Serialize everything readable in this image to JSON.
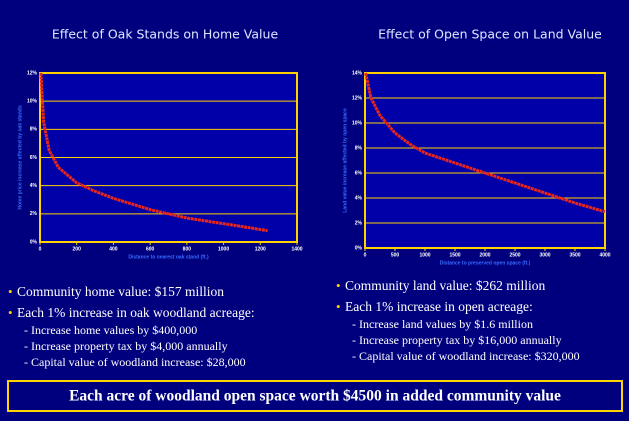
{
  "chart_data": [
    {
      "type": "line",
      "title": "Effect of Oak Stands on Home Value",
      "xlabel": "Distance to nearest oak stand (ft.)",
      "ylabel": "Home price increase affected by oak stands",
      "x": [
        5,
        20,
        50,
        100,
        200,
        300,
        400,
        500,
        600,
        700,
        800,
        900,
        1000,
        1100,
        1240
      ],
      "values": [
        12,
        8.5,
        6.5,
        5.3,
        4.2,
        3.6,
        3.1,
        2.7,
        2.3,
        2.0,
        1.7,
        1.5,
        1.3,
        1.1,
        0.8
      ],
      "color": "#e8261a",
      "xlim": [
        0,
        1400
      ],
      "xticks": [
        0,
        200,
        400,
        600,
        800,
        1000,
        1200,
        1400
      ],
      "ylim": [
        0,
        12
      ],
      "yticks": [
        {
          "value": 0,
          "label": "0%"
        },
        {
          "value": 2,
          "label": "2%"
        },
        {
          "value": 4,
          "label": "4%"
        },
        {
          "value": 6,
          "label": "6%"
        },
        {
          "value": 8,
          "label": "8%"
        },
        {
          "value": 10,
          "label": "10%"
        },
        {
          "value": 12,
          "label": "12%"
        }
      ],
      "grid": true
    },
    {
      "type": "line",
      "title": "Effect of Open Space on Land Value",
      "xlabel": "Distance to preserved open space (ft.)",
      "ylabel": "Land value increase affected by open space",
      "x": [
        10,
        100,
        250,
        500,
        750,
        1000,
        1500,
        2000,
        2500,
        3000,
        3500,
        4000
      ],
      "values": [
        14,
        12,
        10.6,
        9.2,
        8.3,
        7.6,
        6.8,
        6.0,
        5.2,
        4.4,
        3.6,
        2.9
      ],
      "color": "#e8261a",
      "xlim": [
        0,
        4000
      ],
      "xticks": [
        0,
        500,
        1000,
        1500,
        2000,
        2500,
        3000,
        3500,
        4000
      ],
      "ylim": [
        0,
        14
      ],
      "yticks": [
        {
          "value": 0,
          "label": "0%"
        },
        {
          "value": 2,
          "label": "2%"
        },
        {
          "value": 4,
          "label": "4%"
        },
        {
          "value": 6,
          "label": "6%"
        },
        {
          "value": 8,
          "label": "8%"
        },
        {
          "value": 10,
          "label": "10%"
        },
        {
          "value": 12,
          "label": "12%"
        },
        {
          "value": 14,
          "label": "14%"
        }
      ],
      "grid": true
    }
  ],
  "left_text": {
    "bullets": [
      "Community home value: $157 million",
      "Each 1% increase in oak woodland acreage:"
    ],
    "subitems": [
      "- Increase home values by $400,000",
      "- Increase property tax by $4,000 annually",
      "- Capital value of woodland increase: $28,000"
    ]
  },
  "right_text": {
    "bullets": [
      "Community land value: $262 million",
      "Each 1% increase in open acreage:"
    ],
    "subitems": [
      "- Increase land values by $1.6 million",
      "- Increase property tax by $16,000 annually",
      "- Capital value of woodland increase: $320,000"
    ]
  },
  "footer": "Each acre of woodland open space worth $4500 in added community value"
}
